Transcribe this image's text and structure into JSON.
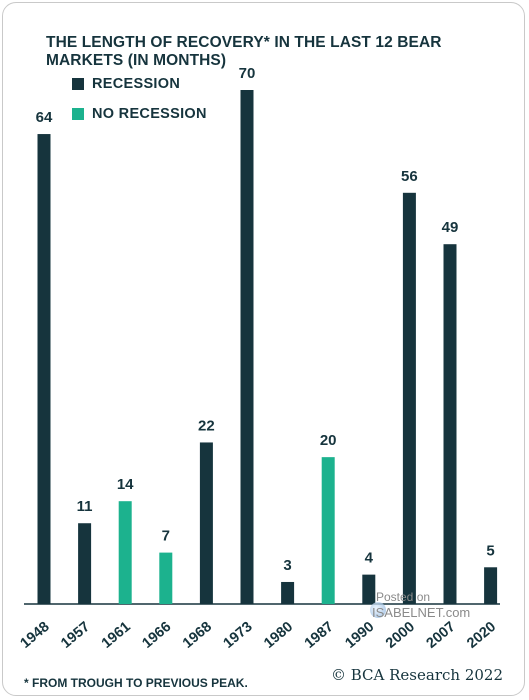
{
  "title": "THE LENGTH OF RECOVERY* IN THE LAST 12 BEAR MARKETS (IN MONTHS)",
  "legend": [
    {
      "label": "RECESSION",
      "color": "#16343d"
    },
    {
      "label": "NO RECESSION",
      "color": "#1cb28e"
    }
  ],
  "footnote": "* FROM TROUGH TO PREVIOUS PEAK.",
  "brand": "© BCA Research 2022",
  "watermark": {
    "posted": "Posted on",
    "site": "ISABELNET.com"
  },
  "chart_data": {
    "type": "bar",
    "title": "THE LENGTH OF RECOVERY* IN THE LAST 12 BEAR MARKETS (IN MONTHS)",
    "categories": [
      "1948",
      "1957",
      "1961",
      "1966",
      "1968",
      "1973",
      "1980",
      "1987",
      "1990",
      "2000",
      "2007",
      "2020"
    ],
    "values": [
      64,
      11,
      14,
      7,
      22,
      70,
      3,
      20,
      4,
      56,
      49,
      5
    ],
    "recession": [
      true,
      true,
      false,
      false,
      true,
      true,
      true,
      false,
      true,
      true,
      true,
      true
    ],
    "colors": {
      "recession": "#16343d",
      "no_recession": "#1cb28e"
    },
    "xlabel": "",
    "ylabel": "",
    "ylim": [
      0,
      70
    ],
    "grid": false,
    "legend_position": "top-left"
  }
}
